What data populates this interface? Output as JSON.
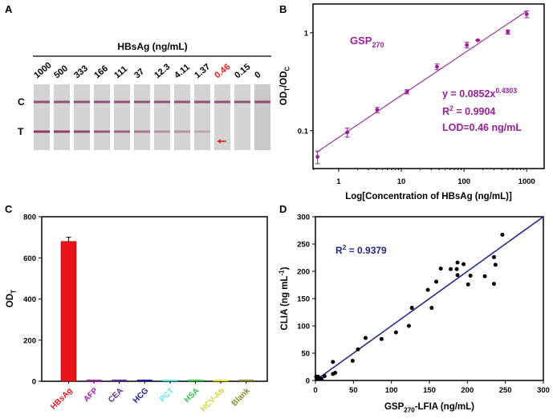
{
  "panels": {
    "a": "A",
    "b": "B",
    "c": "C",
    "d": "D"
  },
  "strips": {
    "title": "HBsAg (ng/mL)",
    "row_labels": {
      "control": "C",
      "test": "T"
    },
    "concentrations": [
      "1000",
      "500",
      "333",
      "166",
      "111",
      "37",
      "12.3",
      "4.11",
      "1.37",
      "0.46",
      "0.15",
      "0"
    ],
    "test_line_intensity": [
      1.0,
      0.95,
      0.9,
      0.8,
      0.7,
      0.5,
      0.3,
      0.25,
      0.1,
      0,
      0,
      0
    ],
    "highlight_index": 9,
    "highlight_color": "#e0201c",
    "arrow_icon": "red-arrow-icon"
  },
  "chart_data": [
    {
      "panel": "B",
      "type": "scatter",
      "x_scale": "log",
      "y_scale": "log",
      "xlabel": "Log[Concentration of HBsAg (ng/mL)]",
      "ylabel": [
        {
          "text": "OD",
          "sub": "T"
        },
        {
          "text": "/OD",
          "sub": "C"
        }
      ],
      "xlim": [
        0.39,
        1900
      ],
      "ylim": [
        0.041,
        1.97
      ],
      "xticks": [
        {
          "v": 1,
          "label": "1"
        },
        {
          "v": 10,
          "label": "10"
        },
        {
          "v": 100,
          "label": "100"
        },
        {
          "v": 1000,
          "label": "1000"
        }
      ],
      "yticks": [
        {
          "v": 0.1,
          "label": "0.1"
        },
        {
          "v": 1,
          "label": "1"
        }
      ],
      "color": "#9b1f9b",
      "points": [
        {
          "x": 0.46,
          "y": 0.054,
          "err": 0.008
        },
        {
          "x": 1.37,
          "y": 0.096,
          "err": 0.01
        },
        {
          "x": 4.11,
          "y": 0.163,
          "err": 0.01
        },
        {
          "x": 12.3,
          "y": 0.25,
          "err": 0.012
        },
        {
          "x": 37,
          "y": 0.45,
          "err": 0.03
        },
        {
          "x": 111,
          "y": 0.75,
          "err": 0.05
        },
        {
          "x": 166,
          "y": 0.84,
          "err": 0.01
        },
        {
          "x": 500,
          "y": 1.02,
          "err": 0.05
        },
        {
          "x": 1000,
          "y": 1.55,
          "err": 0.12
        }
      ],
      "fit": {
        "a": 0.0852,
        "b": 0.4303
      },
      "annotations": {
        "series": {
          "text": "GSP",
          "sub": "270"
        },
        "equation": {
          "text": "y = 0.0852x",
          "sup": "0.4303"
        },
        "r2": {
          "text": "R",
          "sup": "2",
          "rest": " = 0.9904"
        },
        "lod": "LOD=0.46 ng/mL"
      }
    },
    {
      "panel": "C",
      "type": "bar",
      "ylabel": [
        {
          "text": "OD",
          "sub": "T"
        }
      ],
      "ylim": [
        0,
        800
      ],
      "yticks": [
        "0",
        "200",
        "400",
        "600",
        "800"
      ],
      "categories": [
        "HBsAg",
        "AFP",
        "CEA",
        "HCG",
        "PCT",
        "HSA",
        "HCV-Ab",
        "Blank"
      ],
      "values": [
        680,
        8,
        8,
        8,
        8,
        8,
        8,
        8
      ],
      "errors": [
        20,
        0,
        0,
        0,
        0,
        0,
        0,
        0
      ],
      "colors": [
        "#e8141b",
        "#a020b0",
        "#5a2a9c",
        "#1a1aa8",
        "#55e6ee",
        "#2ec84a",
        "#e8e830",
        "#8a8a2a"
      ],
      "label_colors": [
        "#e8141b",
        "#a020b0",
        "#5a2a9c",
        "#1a1aa8",
        "#55e6ee",
        "#2ec84a",
        "#d4d43a",
        "#8a8a2a"
      ]
    },
    {
      "panel": "D",
      "type": "scatter",
      "xlabel": [
        {
          "text": "GSP",
          "sub": "270"
        },
        {
          "text": "-LFIA (ng/mL)"
        }
      ],
      "ylabel": [
        {
          "text": "CLIA (ng mL",
          "sup": "-1"
        },
        {
          "text": ")"
        }
      ],
      "xlim": [
        0,
        300
      ],
      "ylim": [
        0,
        300
      ],
      "xticks": [
        "0",
        "50",
        "100",
        "150",
        "200",
        "250",
        "300"
      ],
      "yticks": [
        "0",
        "50",
        "100",
        "150",
        "200",
        "250",
        "300"
      ],
      "line_color": "#1f2a8a",
      "fit_line": {
        "slope": 1,
        "intercept": 0
      },
      "r2": {
        "text": "R",
        "sup": "2",
        "rest": " = 0.9379"
      },
      "points": [
        [
          1,
          7
        ],
        [
          3.5,
          7
        ],
        [
          2,
          3
        ],
        [
          5,
          4
        ],
        [
          8,
          3
        ],
        [
          12,
          8
        ],
        [
          23,
          34
        ],
        [
          23,
          12
        ],
        [
          26,
          14
        ],
        [
          49,
          36
        ],
        [
          56,
          57
        ],
        [
          66,
          78
        ],
        [
          87,
          76
        ],
        [
          106,
          88
        ],
        [
          123,
          100
        ],
        [
          127,
          133
        ],
        [
          153,
          133
        ],
        [
          148,
          166
        ],
        [
          159,
          181
        ],
        [
          165,
          205
        ],
        [
          178,
          204
        ],
        [
          186,
          204
        ],
        [
          187,
          216
        ],
        [
          187,
          193
        ],
        [
          195,
          213
        ],
        [
          201,
          176
        ],
        [
          204,
          192
        ],
        [
          223,
          191
        ],
        [
          235,
          177
        ],
        [
          235,
          226
        ],
        [
          237,
          212
        ],
        [
          246,
          267
        ]
      ]
    }
  ]
}
